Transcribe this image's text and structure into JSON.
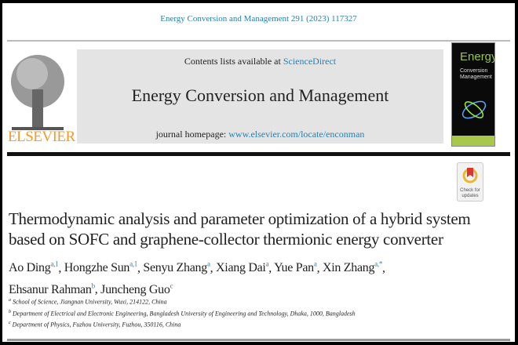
{
  "citation": "Energy Conversion and Management 291 (2023) 117327",
  "publisher": "ELSEVIER",
  "contents_prefix": "Contents lists available at ",
  "contents_link": "ScienceDirect",
  "journal_title": "Energy Conversion and Management",
  "homepage_prefix": "journal homepage: ",
  "homepage_link": "www.elsevier.com/locate/enconman",
  "cover": {
    "line1": "Energy",
    "line2": "Conversion",
    "line3": "Management"
  },
  "check_updates": {
    "line1": "Check for",
    "line2": "updates"
  },
  "title_lines": [
    "Thermodynamic analysis and parameter optimization of a hybrid system",
    "based on SOFC and graphene-collector thermionic energy converter"
  ],
  "authors": [
    {
      "name": "Ao Ding",
      "sup": "a,1"
    },
    {
      "name": "Hongzhe Sun",
      "sup": "a,1"
    },
    {
      "name": "Senyu Zhang",
      "sup": "a"
    },
    {
      "name": "Xiang Dai",
      "sup": "a"
    },
    {
      "name": "Yue Pan",
      "sup": "a"
    },
    {
      "name": "Xin Zhang",
      "sup": "a,*"
    },
    {
      "name": "Ehsanur Rahman",
      "sup": "b"
    },
    {
      "name": "Juncheng Guo",
      "sup": "c"
    }
  ],
  "affiliations": [
    {
      "key": "a",
      "text": "School of Science, Jiangnan University, Wuxi, 214122, China"
    },
    {
      "key": "b",
      "text": "Department of Electrical and Electronic Engineering, Bangladesh University of Engineering and Technology, Dhaka, 1000, Bangladesh"
    },
    {
      "key": "c",
      "text": "Department of Physics, Fuzhou University, Fuzhou, 350116, China"
    }
  ],
  "colors": {
    "link": "#2a7fb0",
    "elsevier": "#f39a2b",
    "band": "#e4e4e4"
  }
}
